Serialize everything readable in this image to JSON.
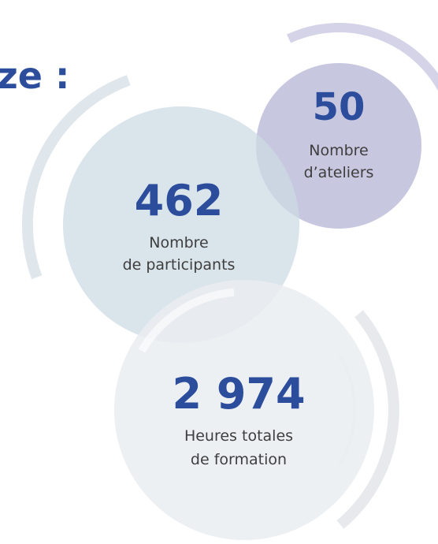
{
  "heading": "ze :",
  "stats": [
    {
      "value": "50",
      "label": [
        "Nombre",
        "d’ateliers"
      ]
    },
    {
      "value": "462",
      "label": [
        "Nombre",
        "de participants"
      ]
    },
    {
      "value": "2 974",
      "label": [
        "Heures totales",
        "de formation"
      ]
    }
  ]
}
